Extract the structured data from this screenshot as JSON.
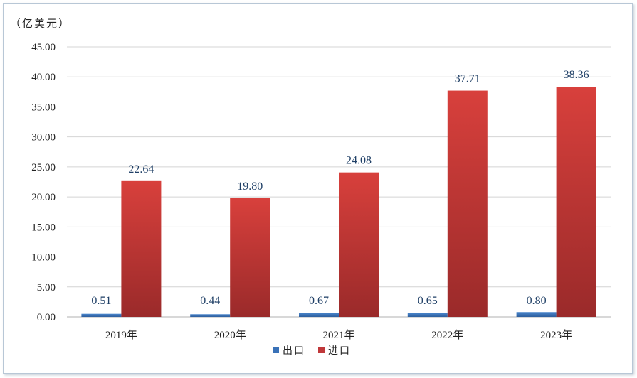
{
  "chart_data": {
    "type": "bar",
    "unit_label": "（亿美元）",
    "categories": [
      "2019年",
      "2020年",
      "2021年",
      "2022年",
      "2023年"
    ],
    "series": [
      {
        "name": "出口",
        "color": "#3a72b8",
        "values": [
          0.51,
          0.44,
          0.67,
          0.65,
          0.8
        ],
        "labels": [
          "0.51",
          "0.44",
          "0.67",
          "0.65",
          "0.80"
        ]
      },
      {
        "name": "进口",
        "color": "#c0383a",
        "values": [
          22.64,
          19.8,
          24.08,
          37.71,
          38.36
        ],
        "labels": [
          "22.64",
          "19.80",
          "24.08",
          "37.71",
          "38.36"
        ]
      }
    ],
    "ylim": [
      0,
      45
    ],
    "yticks": [
      "0.00",
      "5.00",
      "10.00",
      "15.00",
      "20.00",
      "25.00",
      "30.00",
      "35.00",
      "40.00",
      "45.00"
    ],
    "grid": true,
    "legend_position": "bottom-center"
  }
}
